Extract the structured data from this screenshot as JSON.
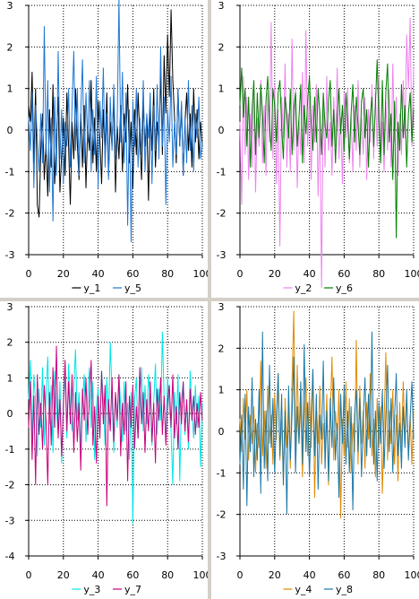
{
  "chart_data": [
    {
      "type": "line",
      "title": "",
      "xlabel": "",
      "ylabel": "",
      "xlim": [
        0,
        100
      ],
      "ylim": [
        -3,
        3
      ],
      "xticks": [
        0,
        20,
        40,
        60,
        80,
        100
      ],
      "yticks": [
        -3,
        -2,
        -1,
        0,
        1,
        2,
        3
      ],
      "grid": true,
      "legend": "bottom",
      "series": [
        {
          "name": "y_1",
          "color": "#000000",
          "values": [
            0.6,
            0.2,
            1.4,
            -0.8,
            1.0,
            -1.8,
            -2.1,
            -0.5,
            0.4,
            -1.2,
            -0.3,
            -1.6,
            0.5,
            -0.9,
            1.1,
            -1.3,
            -0.2,
            0.8,
            -1.5,
            -0.6,
            0.3,
            -1.1,
            0.9,
            -0.4,
            -1.8,
            0.2,
            -0.7,
            1.0,
            -0.3,
            -1.2,
            0.4,
            -0.9,
            0.6,
            -1.4,
            0.1,
            -0.5,
            1.2,
            -0.8,
            0.3,
            -1.0,
            0.7,
            -0.2,
            -1.3,
            0.5,
            -0.6,
            0.9,
            -1.1,
            0.2,
            -0.4,
            0.8,
            -1.5,
            0.1,
            -0.7,
            0.6,
            -1.0,
            0.4,
            -0.3,
            1.1,
            -0.8,
            0.2,
            -1.4,
            0.5,
            -0.6,
            0.9,
            -0.2,
            -1.2,
            0.7,
            -0.4,
            0.3,
            -1.7,
            0.6,
            -0.5,
            1.0,
            -0.9,
            0.2,
            -0.3,
            1.4,
            -0.6,
            1.8,
            0.4,
            2.3,
            0.8,
            2.9,
            1.2,
            0.3,
            -0.8,
            1.0,
            -0.4,
            0.6,
            -1.1,
            0.2,
            0.9,
            -0.5,
            0.4,
            -0.9,
            1.0,
            -0.3,
            0.5,
            -0.7,
            0.2,
            -0.4
          ]
        },
        {
          "name": "y_5",
          "color": "#1f77d4",
          "values": [
            0.3,
            -0.5,
            0.9,
            -1.4,
            0.6,
            -0.2,
            -1.0,
            0.4,
            -0.8,
            2.5,
            -0.6,
            1.2,
            -1.5,
            0.3,
            -2.2,
            0.8,
            -1.1,
            1.9,
            -0.7,
            0.5,
            -1.3,
            0.2,
            -0.4,
            1.0,
            -0.9,
            0.6,
            1.9,
            -0.5,
            1.0,
            -1.1,
            0.4,
            1.7,
            -0.8,
            0.9,
            -0.3,
            1.2,
            -1.0,
            0.5,
            -0.6,
            1.3,
            -1.4,
            0.7,
            -0.2,
            1.5,
            -0.9,
            0.4,
            -1.2,
            0.8,
            -0.5,
            1.1,
            -0.7,
            0.2,
            3.2,
            -0.3,
            1.4,
            -0.8,
            0.9,
            -2.3,
            0.5,
            -2.7,
            0.7,
            -0.4,
            1.0,
            -0.9,
            0.3,
            -0.6,
            1.2,
            -1.0,
            0.4,
            -0.2,
            0.9,
            -1.3,
            0.6,
            -0.5,
            1.1,
            -0.7,
            2.0,
            -0.4,
            0.8,
            -1.8,
            0.5,
            -0.3,
            1.3,
            -0.9,
            0.2,
            -0.6,
            1.0,
            -0.4,
            0.7,
            -1.1,
            0.3,
            -0.8,
            1.2,
            -0.5,
            0.6,
            -1.0,
            0.4,
            -0.2,
            0.8,
            -0.7,
            -0.3
          ]
        }
      ]
    },
    {
      "type": "line",
      "title": "",
      "xlabel": "",
      "ylabel": "",
      "xlim": [
        0,
        100
      ],
      "ylim": [
        -3,
        3
      ],
      "xticks": [
        0,
        20,
        40,
        60,
        80,
        100
      ],
      "yticks": [
        -3,
        -2,
        -1,
        0,
        1,
        2,
        3
      ],
      "grid": true,
      "legend": "bottom",
      "series": [
        {
          "name": "y_2",
          "color": "#ee82ee",
          "values": [
            0.2,
            -1.8,
            1.3,
            -0.6,
            0.8,
            -1.2,
            0.4,
            -0.9,
            1.0,
            -1.5,
            0.3,
            -0.4,
            1.2,
            -0.8,
            0.6,
            -1.1,
            0.9,
            -0.3,
            2.6,
            -0.7,
            1.1,
            -1.3,
            0.5,
            -2.8,
            0.8,
            -0.2,
            1.6,
            -0.9,
            0.4,
            -1.0,
            2.2,
            -0.5,
            1.0,
            -1.4,
            0.3,
            -0.6,
            1.4,
            -0.8,
            2.4,
            -0.4,
            0.9,
            -1.2,
            0.6,
            -0.3,
            1.1,
            -1.6,
            0.5,
            -3.8,
            0.7,
            -0.9,
            1.3,
            -0.5,
            0.2,
            -1.1,
            0.8,
            -0.4,
            1.5,
            -0.7,
            0.3,
            -1.3,
            0.9,
            -0.2,
            1.0,
            -0.8,
            0.4,
            -1.0,
            0.6,
            -0.5,
            1.2,
            -0.9,
            0.3,
            -0.6,
            0.8,
            -1.2,
            0.5,
            -0.3,
            1.1,
            -0.7,
            0.9,
            -0.4,
            1.3,
            -0.8,
            0.2,
            -1.0,
            0.7,
            -0.5,
            1.0,
            -0.9,
            1.6,
            -0.3,
            0.8,
            -1.1,
            0.4,
            -0.6,
            1.2,
            -0.2,
            2.3,
            1.0,
            2.7,
            -0.4,
            1.5
          ]
        },
        {
          "name": "y_6",
          "color": "#008000",
          "values": [
            0.6,
            1.5,
            0.3,
            1.0,
            -0.4,
            0.8,
            -0.9,
            0.5,
            1.2,
            -0.6,
            0.9,
            -0.2,
            1.1,
            0.4,
            -0.8,
            0.7,
            1.3,
            0.2,
            -0.5,
            1.0,
            0.6,
            -0.3,
            0.9,
            1.2,
            0.1,
            -0.7,
            0.8,
            0.4,
            -0.2,
            1.0,
            -0.6,
            0.5,
            0.9,
            -0.4,
            0.3,
            1.1,
            -0.8,
            0.6,
            -0.1,
            0.7,
            1.3,
            0.2,
            -0.5,
            0.8,
            -0.3,
            1.0,
            0.4,
            -0.6,
            0.9,
            0.1,
            -0.2,
            0.7,
            1.2,
            -0.4,
            0.5,
            -0.8,
            0.3,
            1.0,
            -0.1,
            0.6,
            -0.5,
            0.9,
            0.2,
            -0.7,
            0.4,
            1.1,
            -0.3,
            0.8,
            0.1,
            -0.6,
            0.7,
            1.0,
            -0.2,
            0.5,
            -0.9,
            0.3,
            0.8,
            -0.4,
            0.6,
            1.7,
            0.2,
            -0.8,
            1.2,
            -0.6,
            0.9,
            1.6,
            -0.3,
            0.4,
            -1.2,
            0.7,
            -2.6,
            0.2,
            -0.5,
            1.1,
            -0.2,
            0.6,
            -0.9,
            0.4,
            0.9,
            -0.3,
            0.5
          ]
        }
      ]
    },
    {
      "type": "line",
      "title": "",
      "xlabel": "",
      "ylabel": "",
      "xlim": [
        0,
        100
      ],
      "ylim": [
        -4,
        3
      ],
      "xticks": [
        0,
        20,
        40,
        60,
        80,
        100
      ],
      "yticks": [
        -4,
        -3,
        -2,
        -1,
        0,
        1,
        2,
        3
      ],
      "grid": true,
      "legend": "bottom",
      "series": [
        {
          "name": "y_3",
          "color": "#00e5e5",
          "values": [
            0.4,
            1.5,
            -0.8,
            1.1,
            0.3,
            -1.2,
            0.7,
            -0.4,
            1.3,
            -0.9,
            0.5,
            1.6,
            -0.3,
            0.8,
            -1.1,
            1.2,
            0.2,
            -0.6,
            0.9,
            -1.4,
            0.4,
            1.0,
            -0.7,
            1.4,
            0.1,
            -0.5,
            0.8,
            1.8,
            -0.2,
            0.6,
            -1.0,
            0.3,
            1.1,
            -0.8,
            0.5,
            1.3,
            -0.4,
            0.9,
            -1.3,
            0.2,
            0.7,
            -0.6,
            1.2,
            0.4,
            -0.9,
            1.0,
            -0.3,
            2.0,
            0.6,
            -1.1,
            0.5,
            -0.4,
            1.1,
            0.2,
            -0.8,
            0.9,
            -0.5,
            0.3,
            -1.3,
            0.6,
            -3.1,
            0.4,
            1.0,
            -0.7,
            0.2,
            1.3,
            -0.5,
            0.8,
            -0.3,
            1.1,
            0.5,
            -0.9,
            0.3,
            1.4,
            -0.6,
            0.7,
            -0.2,
            2.3,
            0.4,
            -0.8,
            1.0,
            0.2,
            -0.5,
            -2.0,
            0.6,
            -0.3,
            1.1,
            -1.9,
            0.4,
            0.9,
            -0.6,
            0.3,
            -1.0,
            1.2,
            0.1,
            -0.7,
            0.8,
            -0.4,
            0.5,
            -1.5,
            0.3
          ]
        },
        {
          "name": "y_7",
          "color": "#c8007c",
          "values": [
            -0.4,
            0.9,
            -1.3,
            0.5,
            -2.0,
            1.1,
            -0.6,
            0.3,
            -1.0,
            0.8,
            -0.2,
            -2.0,
            0.6,
            -0.9,
            1.3,
            -0.4,
            1.9,
            -0.7,
            0.4,
            -1.2,
            0.2,
            1.5,
            -0.5,
            0.9,
            -0.3,
            1.1,
            -1.1,
            0.6,
            -0.8,
            0.3,
            -1.6,
            0.7,
            -0.2,
            1.0,
            -0.6,
            0.4,
            1.5,
            -0.9,
            0.2,
            -1.4,
            0.5,
            -0.7,
            1.2,
            -0.3,
            0.8,
            -2.6,
            0.4,
            -0.5,
            1.0,
            -0.8,
            0.6,
            -0.2,
            1.1,
            -1.2,
            0.3,
            -0.6,
            0.9,
            -1.9,
            0.5,
            -0.4,
            0.8,
            -1.0,
            0.2,
            -0.7,
            1.3,
            -0.3,
            0.6,
            -1.1,
            0.4,
            -0.5,
            0.9,
            -0.8,
            0.3,
            -1.4,
            0.7,
            -0.2,
            1.0,
            -0.6,
            0.5,
            -0.9,
            0.3,
            0.8,
            -0.4,
            1.1,
            -0.7,
            0.2,
            -1.0,
            0.6,
            -0.3,
            0.9,
            -0.5,
            0.4,
            -0.8,
            0.7,
            -0.2,
            0.5,
            -0.6,
            0.3,
            -0.4,
            0.6,
            -0.2
          ]
        }
      ]
    },
    {
      "type": "line",
      "title": "",
      "xlabel": "",
      "ylabel": "",
      "xlim": [
        0,
        100
      ],
      "ylim": [
        -3,
        3
      ],
      "xticks": [
        0,
        20,
        40,
        60,
        80,
        100
      ],
      "yticks": [
        -3,
        -2,
        -1,
        0,
        1,
        2,
        3
      ],
      "grid": true,
      "legend": "bottom",
      "series": [
        {
          "name": "y_4",
          "color": "#e08a00",
          "values": [
            0.3,
            -0.5,
            0.8,
            -0.2,
            1.0,
            -0.7,
            0.4,
            -0.3,
            0.6,
            -1.0,
            0.2,
            -0.4,
            1.7,
            -0.6,
            0.5,
            -0.9,
            1.1,
            -0.3,
            0.4,
            -0.8,
            0.9,
            -0.2,
            1.4,
            -0.7,
            0.3,
            -1.2,
            0.8,
            -0.4,
            0.6,
            -0.9,
            1.2,
            2.9,
            -0.5,
            1.6,
            -0.3,
            0.7,
            -1.1,
            0.4,
            1.3,
            -0.6,
            0.9,
            -0.4,
            1.5,
            -1.6,
            0.6,
            -0.3,
            1.1,
            -0.8,
            0.2,
            -0.5,
            0.9,
            -1.3,
            0.4,
            1.8,
            -0.7,
            0.5,
            -0.2,
            1.0,
            -2.1,
            0.3,
            -0.6,
            1.2,
            -0.4,
            0.8,
            -1.0,
            0.2,
            -0.5,
            2.2,
            -0.8,
            1.1,
            -0.3,
            0.5,
            -0.9,
            0.7,
            -0.2,
            1.4,
            -0.6,
            0.3,
            -1.1,
            0.8,
            -0.4,
            0.6,
            -1.5,
            0.2,
            1.9,
            -0.7,
            0.5,
            -0.3,
            1.0,
            -0.8,
            0.4,
            -1.2,
            0.7,
            -0.5,
            1.2,
            -0.2,
            0.9,
            -0.6,
            0.4,
            -0.8,
            0.5
          ]
        },
        {
          "name": "y_8",
          "color": "#1a78a8",
          "values": [
            -0.8,
            0.4,
            -1.4,
            0.9,
            -1.8,
            0.6,
            -0.5,
            1.3,
            -1.1,
            0.3,
            -0.7,
            1.0,
            -1.5,
            2.4,
            -0.9,
            0.5,
            -1.2,
            1.6,
            -0.4,
            0.8,
            -1.0,
            0.3,
            1.4,
            -0.6,
            0.9,
            -1.3,
            0.5,
            -2.0,
            1.1,
            -0.7,
            0.4,
            1.8,
            -1.0,
            0.6,
            -0.3,
            1.2,
            -0.8,
            2.1,
            -0.5,
            0.7,
            -1.1,
            0.3,
            1.5,
            -0.6,
            0.9,
            -1.4,
            0.4,
            -0.2,
            1.7,
            -0.9,
            0.5,
            -1.2,
            0.8,
            -0.4,
            1.3,
            -0.7,
            0.2,
            -1.6,
            0.9,
            -0.3,
            1.1,
            -0.8,
            0.5,
            -1.0,
            0.6,
            -1.9,
            0.4,
            1.0,
            -0.5,
            0.8,
            -1.1,
            0.3,
            1.3,
            -0.6,
            0.9,
            -0.4,
            2.4,
            -0.8,
            0.5,
            -1.2,
            0.7,
            -0.3,
            1.0,
            -0.9,
            0.4,
            1.6,
            -0.5,
            0.8,
            -1.0,
            0.3,
            1.4,
            -0.6,
            0.2,
            -0.9,
            0.6,
            -0.4,
            1.0,
            -0.7,
            0.3,
            1.2,
            -0.2
          ]
        }
      ]
    }
  ]
}
